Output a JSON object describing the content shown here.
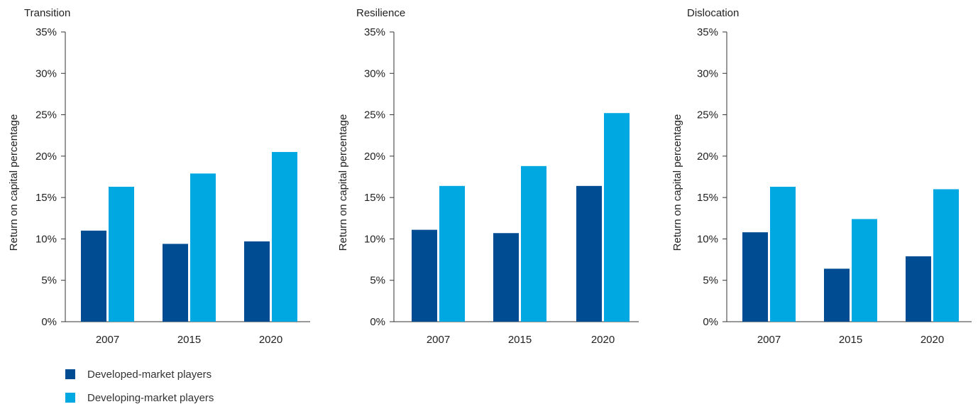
{
  "colors": {
    "developed": "#004c93",
    "developing": "#00a8e1",
    "axis": "#333333",
    "text": "#222222"
  },
  "legend": {
    "items": [
      {
        "label": "Developed-market players",
        "color": "#004c93"
      },
      {
        "label": "Developing-market players",
        "color": "#00a8e1"
      }
    ]
  },
  "chart_data": [
    {
      "type": "bar",
      "title": "Transition",
      "ylabel": "Return on capital percentage",
      "ylim": [
        0,
        35
      ],
      "yticks": [
        "0%",
        "5%",
        "10%",
        "15%",
        "20%",
        "25%",
        "30%",
        "35%"
      ],
      "categories": [
        "2007",
        "2015",
        "2020"
      ],
      "series": [
        {
          "name": "Developed-market players",
          "values": [
            11.0,
            9.4,
            9.7
          ]
        },
        {
          "name": "Developing-market players",
          "values": [
            16.3,
            17.9,
            20.5
          ]
        }
      ]
    },
    {
      "type": "bar",
      "title": "Resilience",
      "ylabel": "Return on capital percentage",
      "ylim": [
        0,
        35
      ],
      "yticks": [
        "0%",
        "5%",
        "10%",
        "15%",
        "20%",
        "25%",
        "30%",
        "35%"
      ],
      "categories": [
        "2007",
        "2015",
        "2020"
      ],
      "series": [
        {
          "name": "Developed-market players",
          "values": [
            11.1,
            10.7,
            16.4
          ]
        },
        {
          "name": "Developing-market players",
          "values": [
            16.4,
            18.8,
            25.2
          ]
        }
      ]
    },
    {
      "type": "bar",
      "title": "Dislocation",
      "ylabel": "Return on capital percentage",
      "ylim": [
        0,
        35
      ],
      "yticks": [
        "0%",
        "5%",
        "10%",
        "15%",
        "20%",
        "25%",
        "30%",
        "35%"
      ],
      "categories": [
        "2007",
        "2015",
        "2020"
      ],
      "series": [
        {
          "name": "Developed-market players",
          "values": [
            10.8,
            6.4,
            7.9
          ]
        },
        {
          "name": "Developing-market players",
          "values": [
            16.3,
            12.4,
            16.0
          ]
        }
      ]
    }
  ]
}
